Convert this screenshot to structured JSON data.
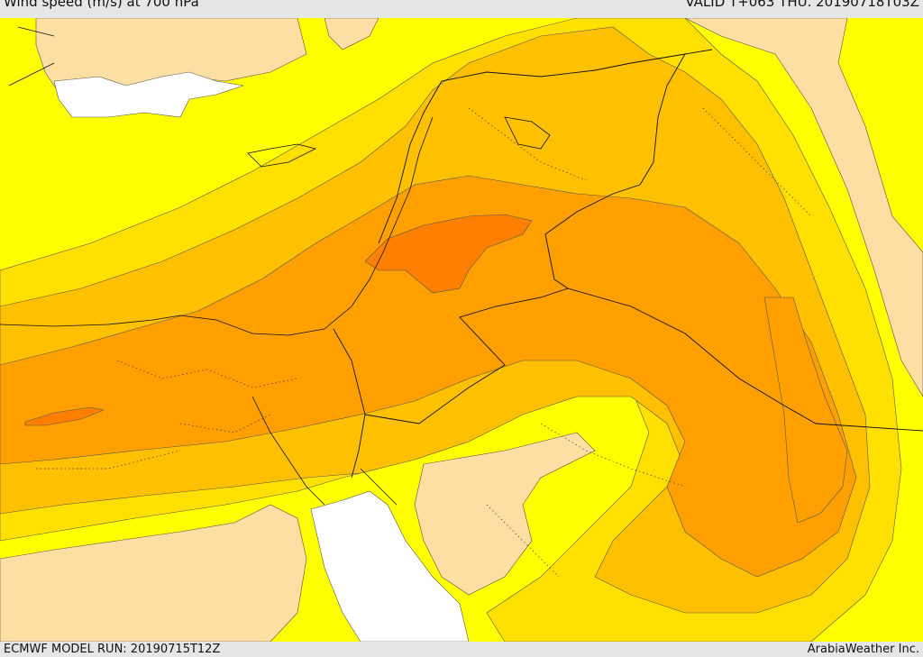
{
  "header": {
    "title": "Wind speed (m/s) at 700 hPa",
    "valid": "VALID T+063 THU. 20190718T03Z"
  },
  "footer": {
    "model_run": "ECMWF MODEL RUN: 20190715T12Z",
    "brand": "ArabiaWeather Inc."
  },
  "palette": {
    "white": "#ffffff",
    "tan": "#fddfa4",
    "yellow": "#ffff00",
    "gold": "#ffe000",
    "light_orange": "#ffc000",
    "orange": "#ffa000",
    "dark_orange": "#ff8000"
  }
}
